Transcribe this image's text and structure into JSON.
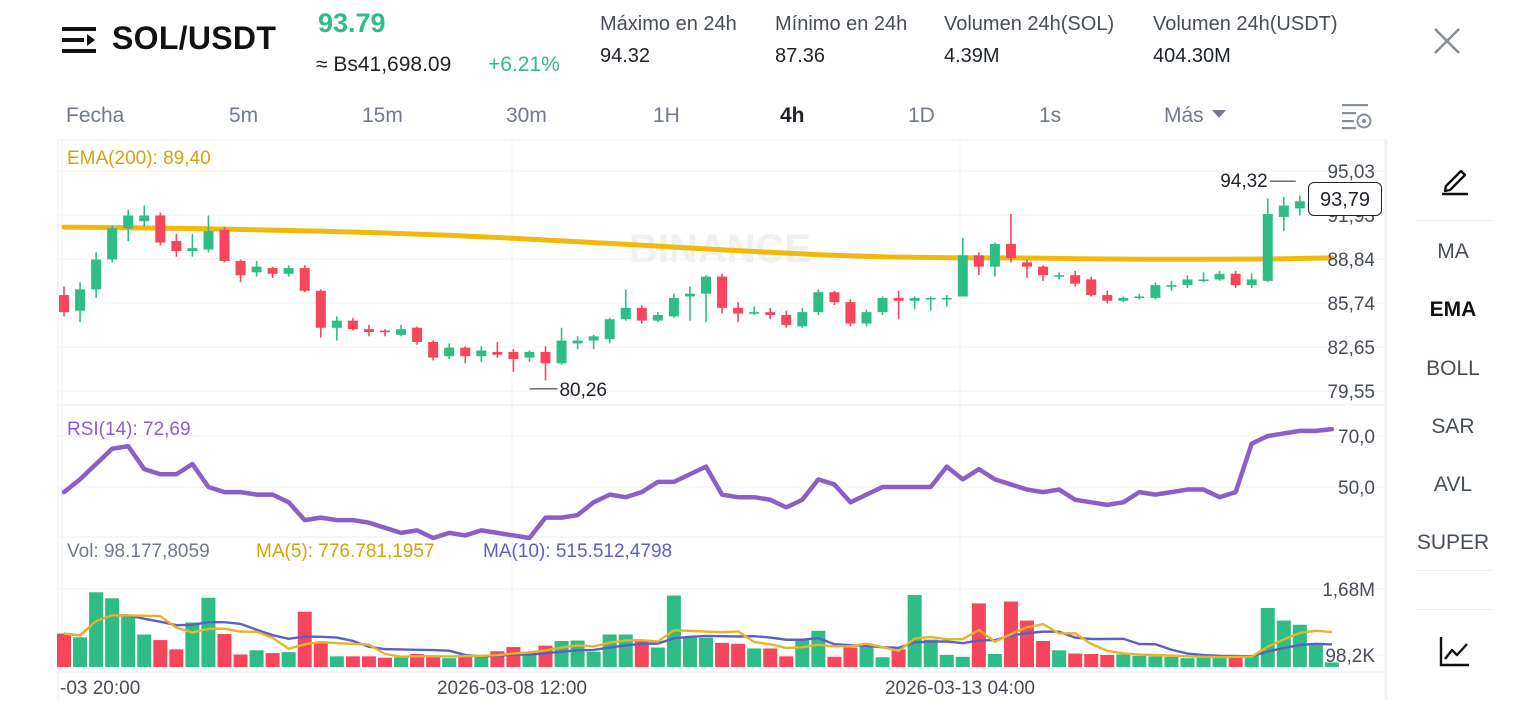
{
  "header": {
    "pair": "SOL/USDT",
    "last_price": "93.79",
    "fiat_price": "≈ Bs41,698.09",
    "change_pct": "+6.21%",
    "stats": [
      {
        "label": "Máximo en 24h",
        "value": "94.32"
      },
      {
        "label": "Mínimo en 24h",
        "value": "87.36"
      },
      {
        "label": "Volumen 24h(SOL)",
        "value": "4.39M"
      },
      {
        "label": "Volumen 24h(USDT)",
        "value": "404.30M"
      }
    ]
  },
  "timeframes": {
    "items": [
      "Fecha",
      "5m",
      "15m",
      "30m",
      "1H",
      "4h",
      "1D",
      "1s",
      "Más"
    ],
    "active": "4h"
  },
  "side_panel": {
    "items": [
      "MA",
      "EMA",
      "BOLL",
      "SAR",
      "AVL",
      "SUPER"
    ],
    "active": "EMA"
  },
  "watermark": "BINANCE",
  "colors": {
    "up": "#2ebd85",
    "down": "#f6465d",
    "ema": "#f0b90b",
    "rsi": "#8a5fc7",
    "ma5": "#e6b32a",
    "ma10": "#5b5fc7"
  },
  "chart_data": {
    "type": "candlestick",
    "main": {
      "legend": "EMA(200): 89,40",
      "y_ticks": [
        "95,03",
        "91,93",
        "88,84",
        "85,74",
        "82,65",
        "79,55"
      ],
      "y_tick_values": [
        95.03,
        91.93,
        88.84,
        85.74,
        82.65,
        79.55
      ],
      "high_marker": "94,32",
      "low_marker": "80,26",
      "current_price_tag": "93,79",
      "candles": [
        [
          86.3,
          85.1,
          86.9,
          84.8
        ],
        [
          85.2,
          86.7,
          87.2,
          84.4
        ],
        [
          86.7,
          88.8,
          89.3,
          86.1
        ],
        [
          88.8,
          91.0,
          91.2,
          88.6
        ],
        [
          91.0,
          91.9,
          92.3,
          90.1
        ],
        [
          91.5,
          91.9,
          92.6,
          91.1
        ],
        [
          91.9,
          90.0,
          92.1,
          89.8
        ],
        [
          90.1,
          89.4,
          90.6,
          89.0
        ],
        [
          89.4,
          89.6,
          90.6,
          89.0
        ],
        [
          89.5,
          90.8,
          91.9,
          89.3
        ],
        [
          90.9,
          88.7,
          91.1,
          88.6
        ],
        [
          88.7,
          87.7,
          88.8,
          87.2
        ],
        [
          87.9,
          88.3,
          88.7,
          87.6
        ],
        [
          88.2,
          87.8,
          88.3,
          87.5
        ],
        [
          87.8,
          88.2,
          88.4,
          87.6
        ],
        [
          88.2,
          86.6,
          88.4,
          86.5
        ],
        [
          86.6,
          84.0,
          86.7,
          83.3
        ],
        [
          84.0,
          84.5,
          84.8,
          83.1
        ],
        [
          84.5,
          83.9,
          84.7,
          83.8
        ],
        [
          83.9,
          83.7,
          84.2,
          83.4
        ],
        [
          83.8,
          83.7,
          83.9,
          83.4
        ],
        [
          83.5,
          83.9,
          84.2,
          83.4
        ],
        [
          84.0,
          83.0,
          84.1,
          82.8
        ],
        [
          83.0,
          81.9,
          83.1,
          81.7
        ],
        [
          82.0,
          82.6,
          82.9,
          81.8
        ],
        [
          82.6,
          82.0,
          82.7,
          81.5
        ],
        [
          82.0,
          82.4,
          82.7,
          81.6
        ],
        [
          82.3,
          82.1,
          83.0,
          81.9
        ],
        [
          82.3,
          81.8,
          82.5,
          80.9
        ],
        [
          81.9,
          82.3,
          82.4,
          81.6
        ],
        [
          82.3,
          81.5,
          82.7,
          80.3
        ],
        [
          81.5,
          83.1,
          84.0,
          81.4
        ],
        [
          82.9,
          83.1,
          83.4,
          82.5
        ],
        [
          83.1,
          83.4,
          83.5,
          82.5
        ],
        [
          83.2,
          84.6,
          84.7,
          82.9
        ],
        [
          84.6,
          85.4,
          86.7,
          84.5
        ],
        [
          85.4,
          84.5,
          85.6,
          84.3
        ],
        [
          84.5,
          84.9,
          85.1,
          84.4
        ],
        [
          84.8,
          86.1,
          86.4,
          84.7
        ],
        [
          86.2,
          86.4,
          86.9,
          84.5
        ],
        [
          86.4,
          87.6,
          87.7,
          84.4
        ],
        [
          87.6,
          85.4,
          87.8,
          85.0
        ],
        [
          85.4,
          85.0,
          85.8,
          84.4
        ],
        [
          85.0,
          85.1,
          85.5,
          84.9
        ],
        [
          85.1,
          84.9,
          85.4,
          84.6
        ],
        [
          84.9,
          84.2,
          85.2,
          84.0
        ],
        [
          84.1,
          85.1,
          85.4,
          84.0
        ],
        [
          85.1,
          86.5,
          86.7,
          84.9
        ],
        [
          86.5,
          85.8,
          86.6,
          85.6
        ],
        [
          85.8,
          84.3,
          86.0,
          84.1
        ],
        [
          84.3,
          85.1,
          85.3,
          84.1
        ],
        [
          85.1,
          86.1,
          86.2,
          84.9
        ],
        [
          86.1,
          85.9,
          86.6,
          84.6
        ],
        [
          85.9,
          86.1,
          86.2,
          85.3
        ],
        [
          86.0,
          86.1,
          86.2,
          85.2
        ],
        [
          86.1,
          86.1,
          86.3,
          85.5
        ],
        [
          86.2,
          89.1,
          90.3,
          86.2
        ],
        [
          89.1,
          88.3,
          89.3,
          87.7
        ],
        [
          88.3,
          89.9,
          90.0,
          87.6
        ],
        [
          89.9,
          88.9,
          92.0,
          88.6
        ],
        [
          88.6,
          88.3,
          88.8,
          87.5
        ],
        [
          88.3,
          87.7,
          88.4,
          87.3
        ],
        [
          87.7,
          87.7,
          87.9,
          87.4
        ],
        [
          87.7,
          87.1,
          88.0,
          86.9
        ],
        [
          87.4,
          86.3,
          87.6,
          86.2
        ],
        [
          86.3,
          85.9,
          86.6,
          85.7
        ],
        [
          85.9,
          86.1,
          86.2,
          85.8
        ],
        [
          86.1,
          86.2,
          86.4,
          86.0
        ],
        [
          86.1,
          87.0,
          87.2,
          86.0
        ],
        [
          87.0,
          87.0,
          87.3,
          86.6
        ],
        [
          87.0,
          87.4,
          87.7,
          86.8
        ],
        [
          87.3,
          87.4,
          87.9,
          87.2
        ],
        [
          87.4,
          87.8,
          88.0,
          87.3
        ],
        [
          87.8,
          87.0,
          88.0,
          86.8
        ],
        [
          87.0,
          87.4,
          87.8,
          86.8
        ],
        [
          87.3,
          92.0,
          93.1,
          87.2
        ],
        [
          91.8,
          92.6,
          93.2,
          90.8
        ],
        [
          92.4,
          92.9,
          93.3,
          91.9
        ],
        [
          92.9,
          93.4,
          93.5,
          92.0
        ],
        [
          93.6,
          93.8,
          94.1,
          93.3
        ]
      ],
      "ema200": [
        91.08,
        91.04,
        90.98,
        90.9,
        90.8,
        90.68,
        90.52,
        90.32,
        90.08,
        89.84,
        89.58,
        89.34,
        89.12,
        88.98,
        88.93,
        88.92,
        88.86,
        88.82,
        88.82,
        88.84,
        88.92
      ]
    },
    "rsi": {
      "legend": "RSI(14): 72,69",
      "y_ticks": [
        "70,0",
        "50,0"
      ],
      "y_tick_values": [
        70,
        50
      ],
      "values": [
        48,
        53,
        59,
        65,
        66,
        57,
        55,
        55,
        59,
        50,
        48,
        48,
        47,
        47,
        44,
        37,
        38,
        37,
        37,
        36,
        34,
        32,
        33,
        30,
        32,
        31,
        33,
        32,
        31,
        30,
        38,
        38,
        39,
        44,
        47,
        46,
        48,
        52,
        52,
        55,
        58,
        47,
        46,
        46,
        45,
        42,
        45,
        53,
        51,
        44,
        47,
        50,
        50,
        50,
        50,
        58,
        53,
        57,
        53,
        51,
        49,
        48,
        49,
        45,
        44,
        43,
        44,
        48,
        47,
        48,
        49,
        49,
        46,
        48,
        67,
        70,
        71,
        72,
        72,
        72.7
      ]
    },
    "volume": {
      "legend_vol": "Vol: 98.177,8059",
      "legend_ma5": "MA(5): 776.781,1957",
      "legend_ma10": "MA(10): 515.512,4798",
      "y_ticks": [
        "1,68M",
        "98,2K"
      ],
      "y_tick_values": [
        1680000,
        98200
      ],
      "values": [
        720,
        640,
        1610,
        1480,
        1100,
        700,
        580,
        380,
        960,
        1490,
        710,
        270,
        360,
        300,
        320,
        1190,
        520,
        230,
        230,
        230,
        200,
        210,
        280,
        240,
        190,
        250,
        250,
        340,
        430,
        300,
        460,
        560,
        570,
        330,
        700,
        700,
        590,
        420,
        1540,
        640,
        630,
        520,
        500,
        400,
        400,
        230,
        590,
        780,
        220,
        420,
        500,
        210,
        380,
        1550,
        590,
        260,
        220,
        1370,
        280,
        1410,
        1000,
        560,
        360,
        290,
        280,
        260,
        270,
        240,
        230,
        220,
        190,
        220,
        210,
        240,
        250,
        1270,
        1000,
        910,
        480,
        98
      ]
    },
    "x_ticks": [
      "-03 20:00",
      "2026-03-08 12:00",
      "2026-03-13 04:00"
    ]
  }
}
